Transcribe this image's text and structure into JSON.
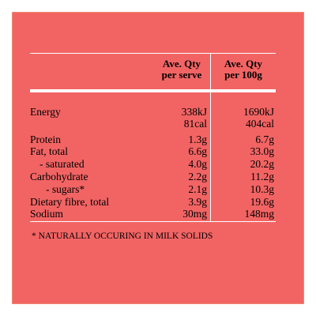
{
  "panel": {
    "background": "#f26464"
  },
  "header": {
    "per_serve": [
      "Ave. Qty",
      "per serve"
    ],
    "per_100g": [
      "Ave. Qty",
      "per 100g"
    ]
  },
  "rows": [
    {
      "label": "Energy",
      "serve": "338kJ",
      "per100": "1690kJ"
    },
    {
      "label": "",
      "serve": "81cal",
      "per100": "404cal"
    },
    {
      "label": "Protein",
      "serve": "1.3g",
      "per100": "6.7g"
    },
    {
      "label": "Fat, total",
      "serve": "6.6g",
      "per100": "33.0g"
    },
    {
      "label": "- saturated",
      "serve": "4.0g",
      "per100": "20.2g"
    },
    {
      "label": "Carbohydrate",
      "serve": "2.2g",
      "per100": "11.2g"
    },
    {
      "label": "- sugars*",
      "serve": "2.1g",
      "per100": "10.3g"
    },
    {
      "label": "Dietary fibre, total",
      "serve": "3.9g",
      "per100": "19.6g"
    },
    {
      "label": "Sodium",
      "serve": "30mg",
      "per100": "148mg"
    }
  ],
  "footnote": "* NATURALLY OCCURING IN MILK SOLIDS"
}
